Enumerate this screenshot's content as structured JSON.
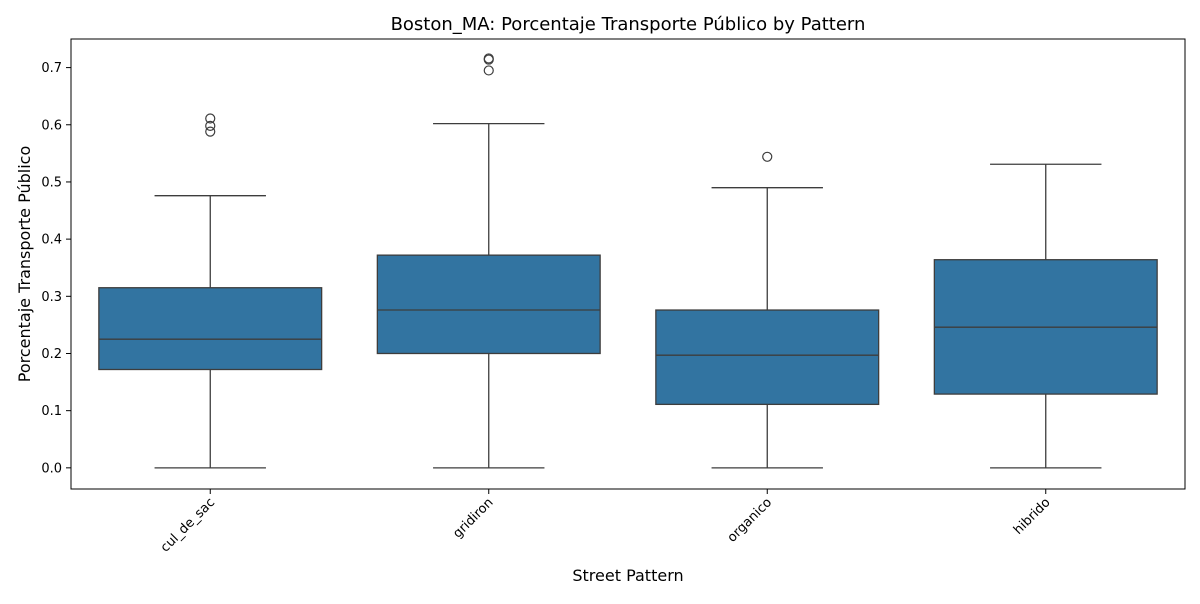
{
  "chart_data": {
    "type": "box",
    "title": "Boston_MA: Porcentaje Transporte Público by Pattern",
    "xlabel": "Street Pattern",
    "ylabel": "Porcentaje Transporte Público",
    "ylim": [
      -0.037,
      0.75
    ],
    "yticks": [
      0.0,
      0.1,
      0.2,
      0.3,
      0.4,
      0.5,
      0.6,
      0.7
    ],
    "ytick_labels": [
      "0.0",
      "0.1",
      "0.2",
      "0.3",
      "0.4",
      "0.5",
      "0.6",
      "0.7"
    ],
    "categories": [
      "cul_de_sac",
      "gridiron",
      "organico",
      "hibrido"
    ],
    "box_color": "#3274a1",
    "line_color": "#3d3d3d",
    "boxes": [
      {
        "category": "cul_de_sac",
        "whisker_low": 0.0,
        "q1": 0.172,
        "median": 0.225,
        "q3": 0.315,
        "whisker_high": 0.476,
        "outliers": [
          0.588,
          0.598,
          0.611
        ]
      },
      {
        "category": "gridiron",
        "whisker_low": 0.0,
        "q1": 0.2,
        "median": 0.276,
        "q3": 0.372,
        "whisker_high": 0.602,
        "outliers": [
          0.695,
          0.714,
          0.716
        ]
      },
      {
        "category": "organico",
        "whisker_low": 0.0,
        "q1": 0.111,
        "median": 0.197,
        "q3": 0.276,
        "whisker_high": 0.49,
        "outliers": [
          0.544
        ]
      },
      {
        "category": "hibrido",
        "whisker_low": 0.0,
        "q1": 0.129,
        "median": 0.246,
        "q3": 0.364,
        "whisker_high": 0.531,
        "outliers": []
      }
    ]
  }
}
